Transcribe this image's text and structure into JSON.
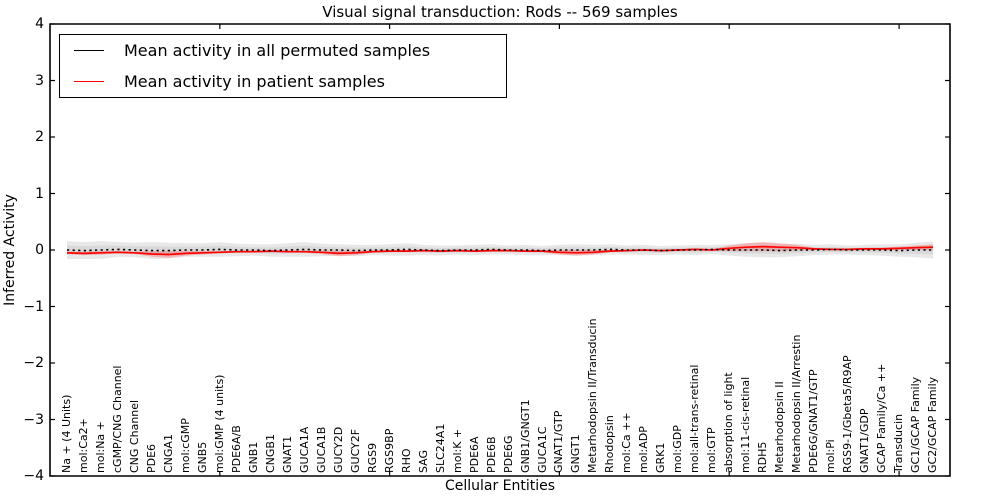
{
  "title": "Visual signal transduction: Rods -- 569 samples",
  "legend": {
    "entries": [
      {
        "label": "Mean activity in all permuted samples",
        "color": "#000000"
      },
      {
        "label": "Mean activity in patient samples",
        "color": "#ff0000"
      }
    ]
  },
  "chart_data": {
    "type": "line",
    "title": "Visual signal transduction: Rods -- 569 samples",
    "xlabel": "Cellular Entities",
    "ylabel": "Inferred Activity",
    "ylim": [
      -4,
      4
    ],
    "yticks": [
      -4,
      -3,
      -2,
      -1,
      0,
      1,
      2,
      3,
      4
    ],
    "ytick_labels": [
      "−4",
      "−3",
      "−2",
      "−1",
      "0",
      "1",
      "2",
      "3",
      "4"
    ],
    "grid": false,
    "legend_position": "upper left",
    "categories": [
      "Na + (4 Units)",
      "mol:Ca2+",
      "mol:Na +",
      "cGMP/CNG Channel",
      "CNG Channel",
      "PDE6",
      "CNGA1",
      "mol:cGMP",
      "GNB5",
      "mol:GMP (4 units)",
      "PDE6A/B",
      "GNB1",
      "CNGB1",
      "GNAT1",
      "GUCA1A",
      "GUCA1B",
      "GUCY2D",
      "GUCY2F",
      "RGS9",
      "RGS9BP",
      "RHO",
      "SAG",
      "SLC24A1",
      "mol:K +",
      "PDE6A",
      "PDE6B",
      "PDE6G",
      "GNB1/GNGT1",
      "GUCA1C",
      "GNAT1/GTP",
      "GNGT1",
      "Metarhodopsin II/Transducin",
      "Rhodopsin",
      "mol:Ca ++",
      "mol:ADP",
      "GRK1",
      "mol:GDP",
      "mol:all-trans-retinal",
      "mol:GTP",
      "absorption of light",
      "mol:11-cis-retinal",
      "RDH5",
      "Metarhodopsin II",
      "Metarhodopsin II/Arrestin",
      "PDE6G/GNAT1/GTP",
      "mol:Pi",
      "RGS9-1/Gbeta5/R9AP",
      "GNAT1/GDP",
      "GCAP Family/Ca ++",
      "Transducin",
      "GC1/GCAP Family",
      "GC2/GCAP Family"
    ],
    "series": [
      {
        "name": "Mean activity in all permuted samples",
        "color": "#000000",
        "style": "dashed",
        "values": [
          0.0,
          -0.01,
          0.0,
          0.01,
          0.0,
          -0.01,
          -0.01,
          0.0,
          0.0,
          0.01,
          0.0,
          0.0,
          -0.01,
          0.0,
          0.01,
          0.0,
          0.0,
          -0.01,
          0.0,
          0.0,
          0.01,
          0.0,
          -0.01,
          0.0,
          0.0,
          0.01,
          0.0,
          0.0,
          -0.01,
          0.0,
          0.0,
          0.0,
          0.01,
          0.0,
          0.0,
          -0.01,
          0.0,
          0.0,
          0.01,
          0.0,
          0.0,
          0.0,
          -0.01,
          0.0,
          0.0,
          0.01,
          0.0,
          0.0,
          0.0,
          -0.01,
          0.0,
          0.0
        ]
      },
      {
        "name": "Mean activity in patient samples",
        "color": "#ff0000",
        "style": "solid",
        "values": [
          -0.05,
          -0.06,
          -0.05,
          -0.04,
          -0.05,
          -0.07,
          -0.08,
          -0.06,
          -0.05,
          -0.04,
          -0.03,
          -0.03,
          -0.02,
          -0.03,
          -0.03,
          -0.04,
          -0.06,
          -0.05,
          -0.03,
          -0.02,
          -0.02,
          -0.01,
          -0.02,
          -0.01,
          -0.02,
          -0.01,
          -0.01,
          -0.02,
          -0.02,
          -0.04,
          -0.05,
          -0.04,
          -0.02,
          -0.01,
          0.0,
          -0.01,
          0.0,
          0.01,
          0.0,
          0.03,
          0.05,
          0.06,
          0.05,
          0.04,
          0.02,
          0.01,
          0.01,
          0.02,
          0.02,
          0.03,
          0.04,
          0.05
        ]
      }
    ],
    "permuted_uncertainty_band": {
      "outer_color": "#e8e8e8",
      "inner_color": "#d9d9d9",
      "halfwidths": [
        0.16,
        0.15,
        0.16,
        0.13,
        0.13,
        0.15,
        0.14,
        0.12,
        0.12,
        0.13,
        0.11,
        0.1,
        0.11,
        0.12,
        0.13,
        0.11,
        0.1,
        0.1,
        0.09,
        0.1,
        0.11,
        0.09,
        0.09,
        0.08,
        0.09,
        0.09,
        0.08,
        0.09,
        0.08,
        0.09,
        0.1,
        0.09,
        0.09,
        0.08,
        0.09,
        0.08,
        0.08,
        0.09,
        0.08,
        0.1,
        0.12,
        0.13,
        0.12,
        0.11,
        0.09,
        0.09,
        0.08,
        0.09,
        0.1,
        0.11,
        0.13,
        0.15
      ]
    },
    "patient_uncertainty_band": {
      "color": "#ff0000",
      "halfwidths": [
        0.02,
        0.03,
        0.03,
        0.02,
        0.02,
        0.05,
        0.06,
        0.04,
        0.03,
        0.02,
        0.015,
        0.015,
        0.015,
        0.015,
        0.02,
        0.03,
        0.05,
        0.04,
        0.02,
        0.015,
        0.015,
        0.015,
        0.015,
        0.015,
        0.015,
        0.015,
        0.015,
        0.015,
        0.02,
        0.04,
        0.05,
        0.04,
        0.02,
        0.015,
        0.015,
        0.015,
        0.015,
        0.015,
        0.015,
        0.05,
        0.07,
        0.08,
        0.07,
        0.05,
        0.02,
        0.015,
        0.015,
        0.02,
        0.02,
        0.03,
        0.04,
        0.05
      ]
    }
  }
}
